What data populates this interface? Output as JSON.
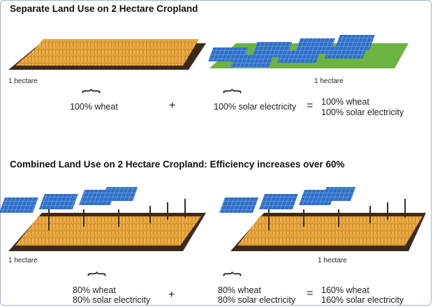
{
  "separate": {
    "title": "Separate Land Use on 2 Hectare Cropland",
    "left_area": "1 hectare",
    "right_area": "1 hectare",
    "left_share": "100% wheat",
    "plus": "+",
    "right_share": "100% solar electricity",
    "equals": "=",
    "result_line1": "100% wheat",
    "result_line2": "100% solar electricity"
  },
  "combined": {
    "title": "Combined Land Use on 2 Hectare Cropland: Efficiency increases over 60%",
    "left_area": "1 hectare",
    "right_area": "1 hectare",
    "left_line1": "80% wheat",
    "left_line2": "80% solar electricity",
    "plus": "+",
    "right_line1": "80% wheat",
    "right_line2": "80% solar electricity",
    "equals": "=",
    "result_line1": "160% wheat",
    "result_line2": "160% solar electricity"
  },
  "colors": {
    "soil": "#3d2a1e",
    "wheat": "#e3a13a",
    "grass": "#6db33f",
    "panel": "#2f6fc9"
  }
}
